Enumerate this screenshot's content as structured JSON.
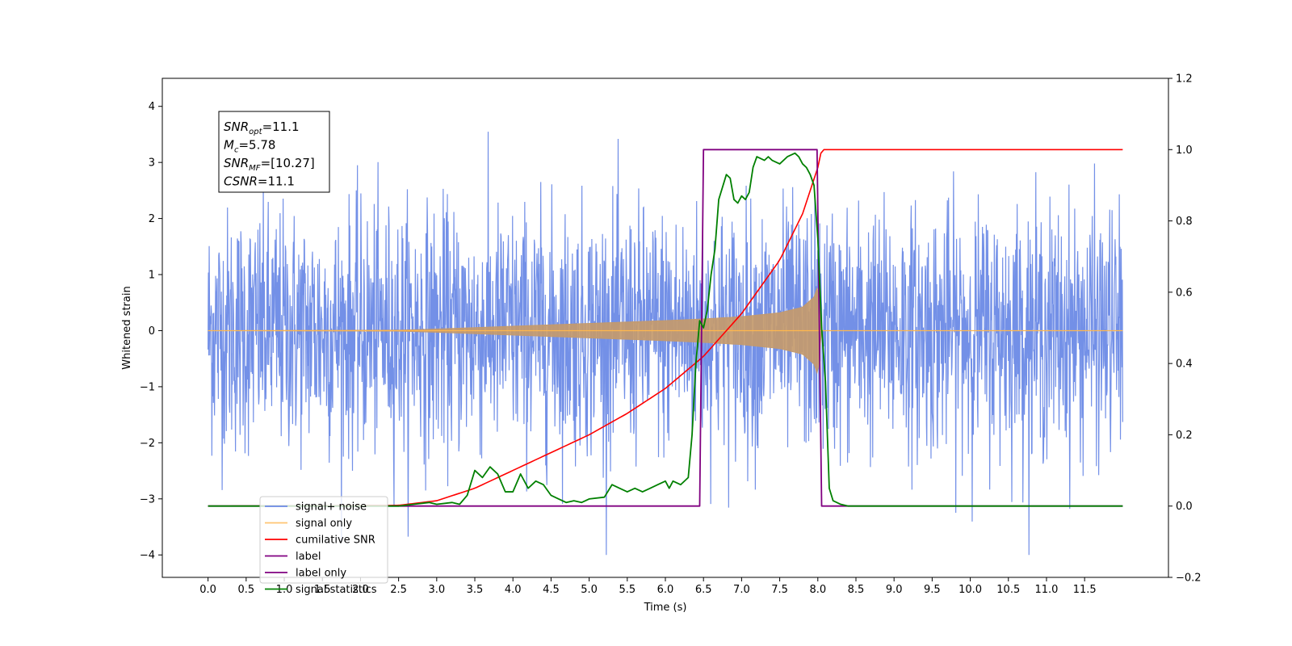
{
  "chart_data": {
    "type": "line",
    "title": "",
    "xlabel": "Time (s)",
    "ylabel": "Whitened strain",
    "xlim": [
      -0.6,
      12.6
    ],
    "ylim": [
      -4.4,
      4.5
    ],
    "y2lim": [
      -0.2,
      1.2
    ],
    "xticks": [
      "0.0",
      "0.5",
      "1.0",
      "1.5",
      "2.0",
      "2.5",
      "3.0",
      "3.5",
      "4.0",
      "4.5",
      "5.0",
      "5.5",
      "6.0",
      "6.5",
      "7.0",
      "7.5",
      "8.0",
      "8.5",
      "9.0",
      "9.5",
      "10.0",
      "10.5",
      "11.0",
      "11.5"
    ],
    "yticks": [
      "−4",
      "−3",
      "−2",
      "−1",
      "0",
      "1",
      "2",
      "3",
      "4"
    ],
    "y2ticks": [
      "−0.2",
      "0.0",
      "0.2",
      "0.4",
      "0.6",
      "0.8",
      "1.0",
      "1.2"
    ],
    "grid": false,
    "legend_position": "lower-left",
    "annotation": {
      "lines": [
        {
          "base": "SNR",
          "sub": "opt",
          "value": "=11.1"
        },
        {
          "base": "M",
          "sub": "c",
          "value": "=5.78"
        },
        {
          "base": "SNR",
          "sub": "MF",
          "value": "=[10.27]"
        },
        {
          "base": "CSNR",
          "sub": "",
          "value": "=11.1"
        }
      ]
    },
    "series": [
      {
        "name": "signal+ noise",
        "axis": "left",
        "color": "#6b8ae6",
        "x_range": [
          0.0,
          12.0
        ],
        "envelope": {
          "mean": 0.0,
          "typical_peak": 2.6,
          "max": 4.1,
          "min": -4.0
        }
      },
      {
        "name": "signal only",
        "axis": "left",
        "color": "#ffb74d",
        "x_range": [
          0.0,
          12.0
        ],
        "envelope_amplitude": {
          "x": [
            0.0,
            2.5,
            3.0,
            4.0,
            5.0,
            6.0,
            6.5,
            7.0,
            7.5,
            7.8,
            7.95,
            8.0,
            8.05
          ],
          "y": [
            0.0,
            0.01,
            0.03,
            0.08,
            0.13,
            0.18,
            0.21,
            0.25,
            0.32,
            0.42,
            0.6,
            0.8,
            0.0
          ]
        }
      },
      {
        "name": "cumilative SNR",
        "axis": "right",
        "color": "#ff0000",
        "x": [
          0.0,
          2.5,
          3.0,
          3.5,
          4.0,
          4.5,
          5.0,
          5.5,
          6.0,
          6.5,
          7.0,
          7.5,
          7.8,
          8.0,
          8.05,
          12.0
        ],
        "values": [
          0.0,
          0.002,
          0.015,
          0.05,
          0.1,
          0.15,
          0.2,
          0.26,
          0.33,
          0.42,
          0.54,
          0.69,
          0.82,
          0.95,
          1.0,
          1.0
        ]
      },
      {
        "name": "label",
        "axis": "right",
        "color": "#800080",
        "x": [
          0.0,
          6.45,
          6.5,
          7.99,
          8.05,
          12.0
        ],
        "values": [
          0.0,
          0.0,
          1.0,
          1.0,
          0.0,
          0.0
        ]
      },
      {
        "name": "label only",
        "axis": "right",
        "color": "#800080",
        "x": [],
        "values": []
      },
      {
        "name": "signal statistics",
        "axis": "right",
        "color": "#008000",
        "x": [
          0.0,
          2.5,
          2.9,
          3.0,
          3.2,
          3.3,
          3.4,
          3.5,
          3.6,
          3.7,
          3.8,
          3.9,
          4.0,
          4.1,
          4.2,
          4.3,
          4.4,
          4.5,
          4.6,
          4.7,
          4.8,
          4.9,
          5.0,
          5.2,
          5.3,
          5.4,
          5.5,
          5.6,
          5.7,
          5.8,
          5.9,
          6.0,
          6.05,
          6.1,
          6.2,
          6.3,
          6.35,
          6.4,
          6.45,
          6.5,
          6.55,
          6.6,
          6.65,
          6.7,
          6.8,
          6.85,
          6.9,
          6.95,
          7.0,
          7.05,
          7.1,
          7.15,
          7.2,
          7.3,
          7.35,
          7.4,
          7.5,
          7.6,
          7.7,
          7.75,
          7.8,
          7.85,
          7.9,
          7.95,
          8.0,
          8.05,
          8.1,
          8.15,
          8.2,
          8.3,
          8.4,
          8.5,
          12.0
        ],
        "values": [
          0.0,
          0.0,
          0.01,
          0.005,
          0.01,
          0.005,
          0.03,
          0.1,
          0.08,
          0.11,
          0.09,
          0.04,
          0.04,
          0.09,
          0.05,
          0.07,
          0.06,
          0.03,
          0.02,
          0.01,
          0.015,
          0.01,
          0.02,
          0.025,
          0.06,
          0.05,
          0.04,
          0.05,
          0.04,
          0.05,
          0.06,
          0.07,
          0.05,
          0.07,
          0.06,
          0.08,
          0.2,
          0.4,
          0.52,
          0.5,
          0.55,
          0.65,
          0.72,
          0.86,
          0.93,
          0.92,
          0.86,
          0.85,
          0.87,
          0.86,
          0.88,
          0.95,
          0.98,
          0.97,
          0.98,
          0.97,
          0.96,
          0.98,
          0.99,
          0.98,
          0.96,
          0.95,
          0.93,
          0.9,
          0.75,
          0.5,
          0.35,
          0.05,
          0.015,
          0.005,
          0.0,
          0.0,
          0.0
        ]
      }
    ]
  }
}
